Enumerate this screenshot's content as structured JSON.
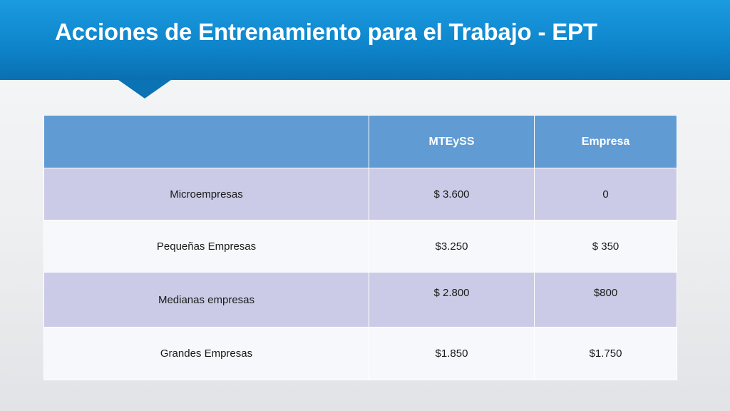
{
  "title": "Acciones de Entrenamiento para el Trabajo - EPT",
  "table": {
    "headers": [
      "",
      "MTEySS",
      "Empresa"
    ],
    "rows": [
      [
        "Microempresas",
        "$ 3.600",
        "0"
      ],
      [
        "Pequeñas Empresas",
        "$3.250",
        "$ 350"
      ],
      [
        "Medianas empresas",
        "$ 2.800",
        "$800"
      ],
      [
        "Grandes Empresas",
        "$1.850",
        "$1.750"
      ]
    ]
  },
  "colors": {
    "header_band": "#1189cf",
    "table_header": "#619bd3",
    "row_shaded": "#cbcbe7",
    "row_light": "#f7f8fb"
  }
}
